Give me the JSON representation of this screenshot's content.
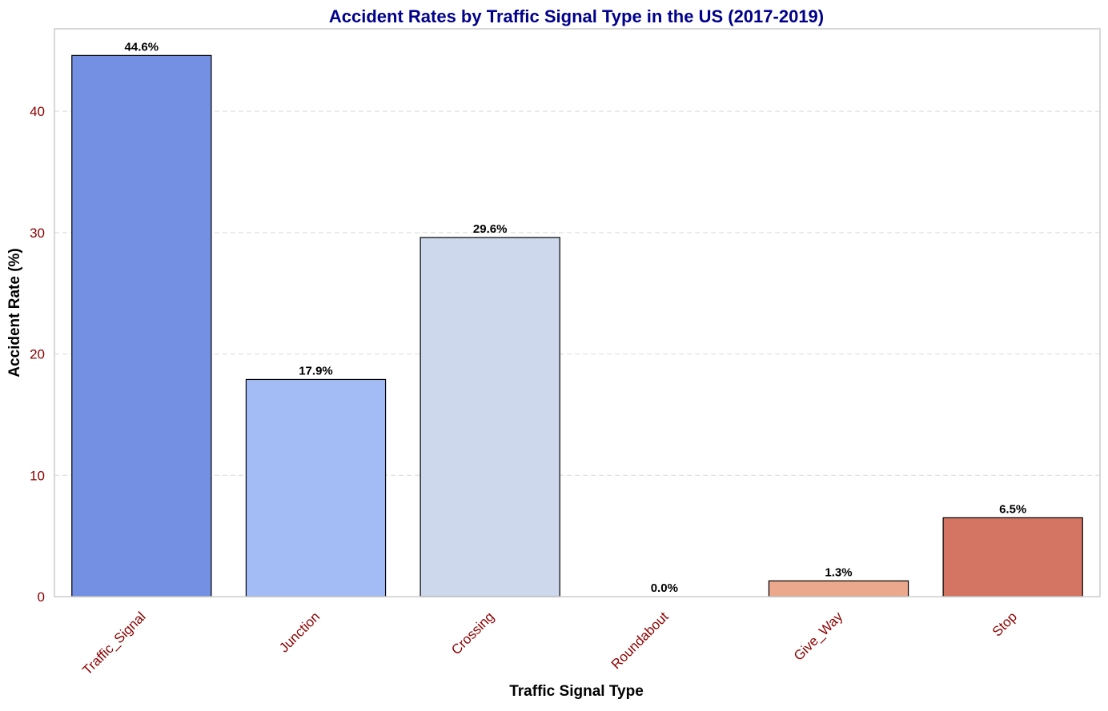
{
  "chart_data": {
    "type": "bar",
    "title": "Accident Rates by Traffic Signal Type in the US (2017-2019)",
    "xlabel": "Traffic Signal Type",
    "ylabel": "Accident Rate (%)",
    "categories": [
      "Traffic_Signal",
      "Junction",
      "Crossing",
      "Roundabout",
      "Give_Way",
      "Stop"
    ],
    "values": [
      44.6,
      17.9,
      29.6,
      0.0,
      1.3,
      6.5
    ],
    "data_labels": [
      "44.6%",
      "17.9%",
      "29.6%",
      "0.0%",
      "1.3%",
      "6.5%"
    ],
    "bar_colors": [
      "#7390e2",
      "#a3bcf5",
      "#cdd8ed",
      "#e8d5cc",
      "#eca88d",
      "#d47462"
    ],
    "ylim": [
      0,
      46.8
    ],
    "yticks": [
      0,
      10,
      20,
      30,
      40
    ],
    "grid": "y-dashed",
    "colors": {
      "title": "#00008b",
      "tick_labels": "#8b0000",
      "axis_labels": "#000000",
      "bar_edge": "#000000",
      "grid": "#d9d9d9",
      "frame": "#cccccc"
    }
  }
}
